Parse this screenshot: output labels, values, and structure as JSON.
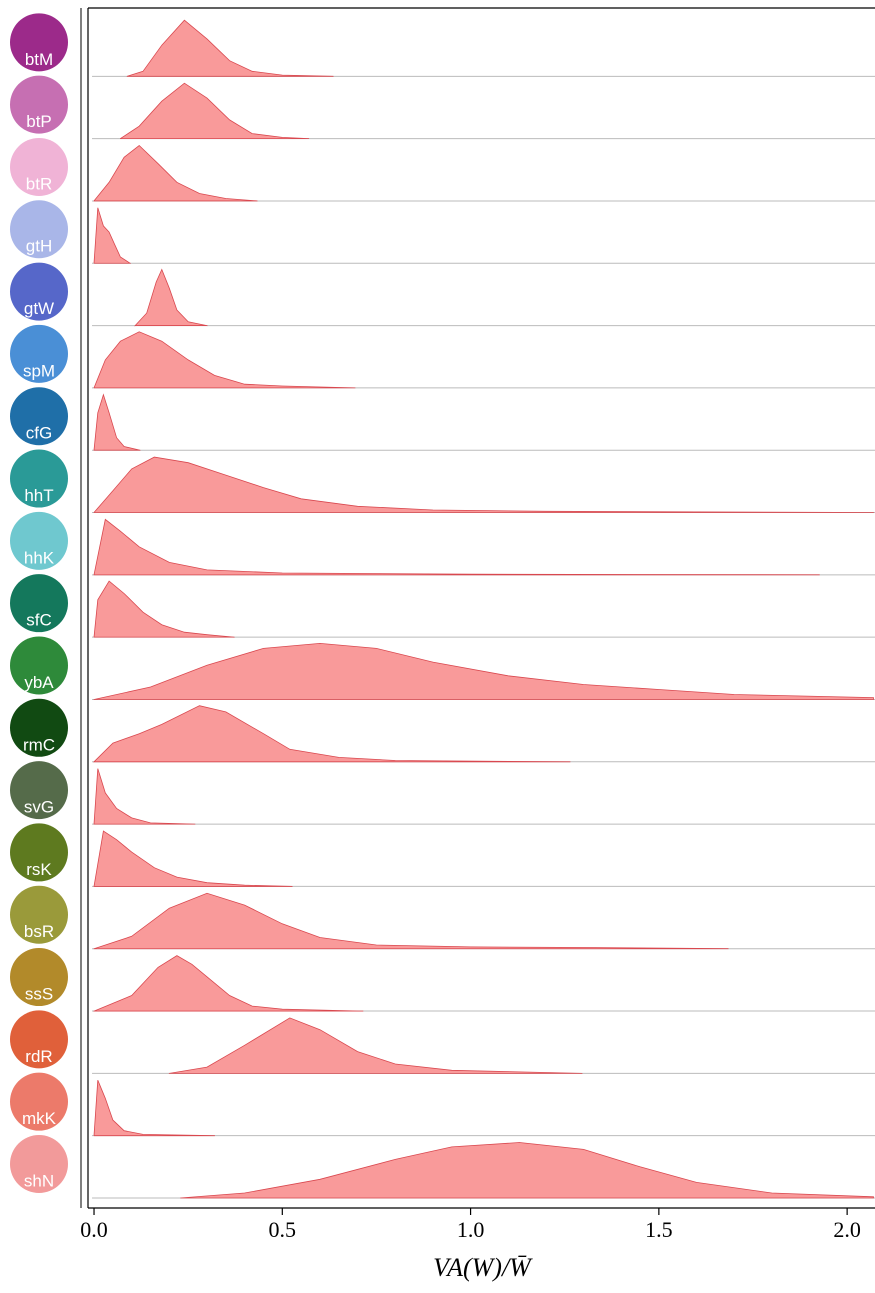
{
  "chart_data": {
    "type": "ridgeline",
    "x_label": "VA(W)/W̄",
    "color": "#f99a9a",
    "line_color": "#d9484f",
    "xlim": [
      -0.016,
      2.074
    ],
    "ylim": [
      0,
      1
    ],
    "xticks": [
      {
        "value": 0,
        "label": "0.0"
      },
      0.5,
      {
        "value": 1,
        "label": "1.0"
      },
      1.5,
      {
        "value": 2,
        "label": "2.0"
      }
    ],
    "series": [
      {
        "name": "btM",
        "icon_color": "#9c2a8a",
        "x": [
          0.088,
          0.13,
          0.18,
          0.24,
          0.3,
          0.36,
          0.42,
          0.5,
          0.635
        ],
        "values": [
          0,
          0.08,
          0.5,
          0.9,
          0.6,
          0.25,
          0.08,
          0.02,
          0
        ]
      },
      {
        "name": "btP",
        "icon_color": "#c66fb2",
        "x": [
          0.07,
          0.12,
          0.18,
          0.24,
          0.3,
          0.36,
          0.42,
          0.5,
          0.57
        ],
        "values": [
          0,
          0.2,
          0.6,
          0.89,
          0.65,
          0.3,
          0.08,
          0.02,
          0
        ]
      },
      {
        "name": "btR",
        "icon_color": "#f0b3d6",
        "x": [
          0,
          0.04,
          0.08,
          0.12,
          0.17,
          0.22,
          0.28,
          0.35,
          0.433
        ],
        "values": [
          0,
          0.3,
          0.7,
          0.89,
          0.6,
          0.3,
          0.12,
          0.04,
          0
        ]
      },
      {
        "name": "gtH",
        "icon_color": "#a9b6e8",
        "x": [
          0,
          0.01,
          0.025,
          0.04,
          0.055,
          0.07,
          0.096
        ],
        "values": [
          0,
          0.89,
          0.6,
          0.5,
          0.3,
          0.1,
          0
        ]
      },
      {
        "name": "gtW",
        "icon_color": "#5667c9",
        "x": [
          0.109,
          0.14,
          0.165,
          0.18,
          0.2,
          0.22,
          0.25,
          0.3
        ],
        "values": [
          0,
          0.2,
          0.7,
          0.9,
          0.6,
          0.25,
          0.06,
          0
        ]
      },
      {
        "name": "spM",
        "icon_color": "#4a8fd6",
        "x": [
          0,
          0.03,
          0.07,
          0.12,
          0.18,
          0.25,
          0.32,
          0.4,
          0.5,
          0.693
        ],
        "values": [
          0,
          0.45,
          0.75,
          0.9,
          0.75,
          0.45,
          0.2,
          0.06,
          0.03,
          0
        ]
      },
      {
        "name": "cfG",
        "icon_color": "#1f6fa8",
        "x": [
          0,
          0.01,
          0.025,
          0.04,
          0.06,
          0.08,
          0.122
        ],
        "values": [
          0,
          0.6,
          0.89,
          0.6,
          0.2,
          0.06,
          0
        ]
      },
      {
        "name": "hhT",
        "icon_color": "#2a9a97",
        "x": [
          0,
          0.05,
          0.1,
          0.16,
          0.25,
          0.35,
          0.45,
          0.55,
          0.7,
          0.9,
          1.2,
          1.6,
          2.07
        ],
        "values": [
          0,
          0.35,
          0.7,
          0.89,
          0.8,
          0.6,
          0.4,
          0.22,
          0.1,
          0.04,
          0.02,
          0.01,
          0
        ]
      },
      {
        "name": "hhK",
        "icon_color": "#6fc8cf",
        "x": [
          0,
          0.03,
          0.07,
          0.12,
          0.2,
          0.3,
          0.5,
          1.0,
          1.926
        ],
        "values": [
          0,
          0.89,
          0.7,
          0.45,
          0.2,
          0.08,
          0.03,
          0.01,
          0
        ]
      },
      {
        "name": "sfC",
        "icon_color": "#14785c",
        "x": [
          0,
          0.01,
          0.04,
          0.08,
          0.13,
          0.18,
          0.24,
          0.3,
          0.372
        ],
        "values": [
          0,
          0.6,
          0.9,
          0.7,
          0.4,
          0.2,
          0.08,
          0.04,
          0
        ]
      },
      {
        "name": "ybA",
        "icon_color": "#2e8a3a",
        "x": [
          0,
          0.15,
          0.3,
          0.45,
          0.6,
          0.75,
          0.9,
          1.1,
          1.3,
          1.5,
          1.7,
          2.07
        ],
        "values": [
          0,
          0.2,
          0.55,
          0.82,
          0.9,
          0.82,
          0.6,
          0.38,
          0.24,
          0.16,
          0.08,
          0.03
        ]
      },
      {
        "name": "rmC",
        "icon_color": "#114a12",
        "x": [
          0,
          0.05,
          0.12,
          0.18,
          0.28,
          0.35,
          0.45,
          0.52,
          0.65,
          0.8,
          1.264
        ],
        "values": [
          0,
          0.3,
          0.45,
          0.6,
          0.9,
          0.8,
          0.45,
          0.2,
          0.07,
          0.02,
          0
        ]
      },
      {
        "name": "svG",
        "icon_color": "#556b4a",
        "x": [
          0,
          0.01,
          0.03,
          0.06,
          0.1,
          0.15,
          0.268
        ],
        "values": [
          0,
          0.89,
          0.5,
          0.25,
          0.1,
          0.02,
          0
        ]
      },
      {
        "name": "rsK",
        "icon_color": "#5e7a1f",
        "x": [
          0,
          0.025,
          0.06,
          0.1,
          0.16,
          0.22,
          0.3,
          0.4,
          0.526
        ],
        "values": [
          0,
          0.89,
          0.75,
          0.55,
          0.3,
          0.15,
          0.06,
          0.02,
          0
        ]
      },
      {
        "name": "bsR",
        "icon_color": "#9a9a3a",
        "x": [
          0,
          0.1,
          0.2,
          0.3,
          0.4,
          0.5,
          0.6,
          0.75,
          1.0,
          1.3,
          1.684
        ],
        "values": [
          0,
          0.2,
          0.65,
          0.89,
          0.7,
          0.4,
          0.18,
          0.06,
          0.03,
          0.02,
          0
        ]
      },
      {
        "name": "ssS",
        "icon_color": "#b28a2a",
        "x": [
          0,
          0.1,
          0.17,
          0.22,
          0.26,
          0.3,
          0.36,
          0.42,
          0.5,
          0.714
        ],
        "values": [
          0,
          0.25,
          0.7,
          0.89,
          0.75,
          0.55,
          0.25,
          0.08,
          0.03,
          0
        ]
      },
      {
        "name": "rdR",
        "icon_color": "#e0603a",
        "x": [
          0.2,
          0.3,
          0.4,
          0.52,
          0.6,
          0.7,
          0.8,
          0.95,
          1.296
        ],
        "values": [
          0,
          0.1,
          0.45,
          0.89,
          0.7,
          0.35,
          0.15,
          0.05,
          0
        ]
      },
      {
        "name": "mkK",
        "icon_color": "#ec7a6a",
        "x": [
          0,
          0.01,
          0.03,
          0.05,
          0.08,
          0.13,
          0.32
        ],
        "values": [
          0,
          0.89,
          0.6,
          0.25,
          0.08,
          0.02,
          0
        ]
      },
      {
        "name": "shN",
        "icon_color": "#f29a9a",
        "x": [
          0.229,
          0.4,
          0.6,
          0.8,
          0.95,
          1.13,
          1.3,
          1.45,
          1.6,
          1.8,
          2.07
        ],
        "values": [
          0,
          0.08,
          0.3,
          0.62,
          0.82,
          0.89,
          0.78,
          0.5,
          0.25,
          0.08,
          0.02
        ]
      }
    ]
  }
}
